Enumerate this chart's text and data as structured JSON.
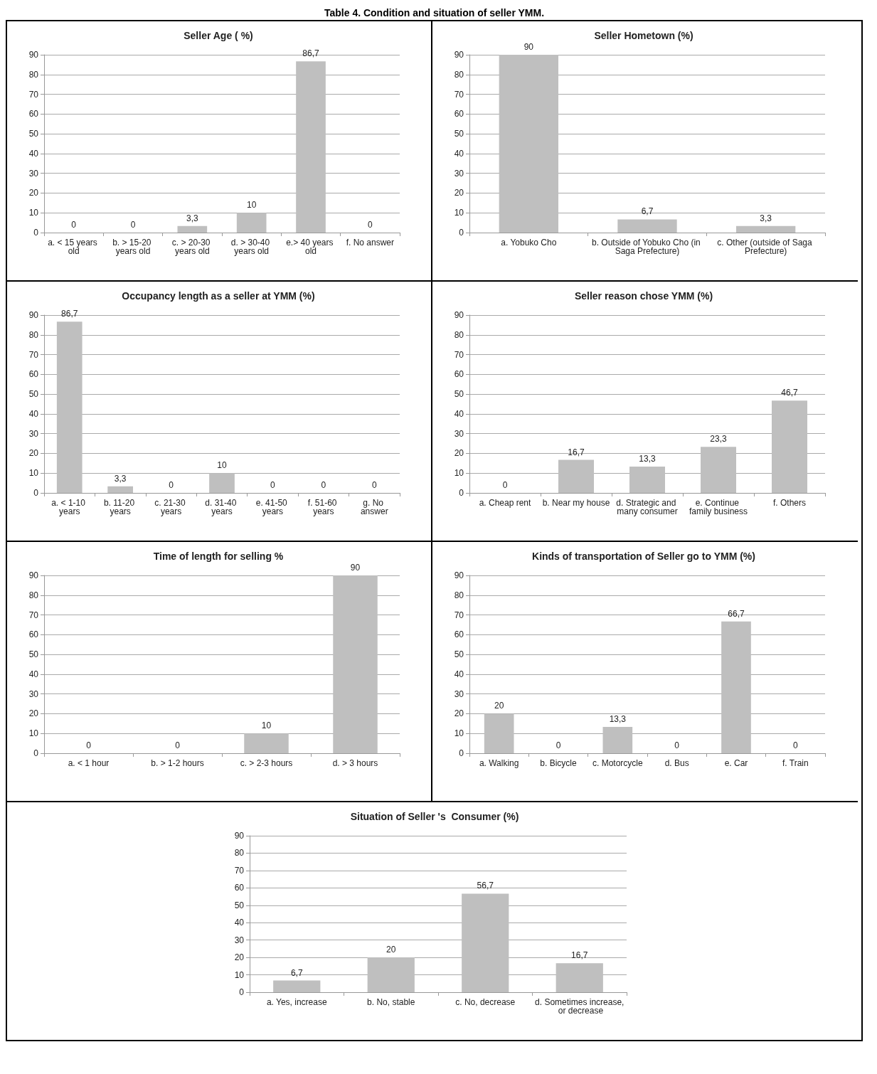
{
  "chart_data": [
    {
      "type": "bar",
      "title": "Seller Age ( %)",
      "annotations": [
        "Table 4. Condition and situation of seller YMM."
      ],
      "categories": [
        "a. < 15 years old",
        "b. > 15-20 years old",
        "c. > 20-30 years old",
        "d. > 30-40 years old",
        "e.> 40 years old",
        "f. No answer"
      ],
      "values": [
        0,
        0,
        3.3,
        10,
        86.7,
        0
      ],
      "value_labels": [
        "0",
        "0",
        "3,3",
        "10",
        "86,7",
        "0"
      ],
      "color": "#bfbfbf",
      "ylim": [
        0,
        90
      ],
      "yticks": [
        0,
        10,
        20,
        30,
        40,
        50,
        60,
        70,
        80,
        90
      ],
      "grid": "y"
    },
    {
      "type": "bar",
      "title": "Seller Hometown (%)",
      "categories": [
        "a. Yobuko Cho",
        "b. Outside of Yobuko Cho (in Saga Prefecture)",
        "c. Other (outside of Saga Prefecture)"
      ],
      "values": [
        90,
        6.7,
        3.3
      ],
      "value_labels": [
        "90",
        "6,7",
        "3,3"
      ],
      "color": "#bfbfbf",
      "ylim": [
        0,
        90
      ],
      "yticks": [
        0,
        10,
        20,
        30,
        40,
        50,
        60,
        70,
        80,
        90
      ],
      "grid": "y"
    },
    {
      "type": "bar",
      "title": "Occupancy length as a seller at YMM (%)",
      "categories": [
        "a. < 1-10 years",
        "b. 11-20 years",
        "c. 21-30 years",
        "d. 31-40 years",
        "e. 41-50 years",
        "f. 51-60 years",
        "g. No answer"
      ],
      "values": [
        86.7,
        3.3,
        0,
        10,
        0,
        0,
        0
      ],
      "value_labels": [
        "86,7",
        "3,3",
        "0",
        "10",
        "0",
        "0",
        "0"
      ],
      "color": "#bfbfbf",
      "ylim": [
        0,
        90
      ],
      "yticks": [
        0,
        10,
        20,
        30,
        40,
        50,
        60,
        70,
        80,
        90
      ],
      "grid": "y"
    },
    {
      "type": "bar",
      "title": "Seller reason chose YMM (%)",
      "categories": [
        "a. Cheap rent",
        "b. Near my house",
        "d. Strategic and many consumer",
        "e. Continue family business",
        "f. Others"
      ],
      "values": [
        0,
        16.7,
        13.3,
        23.3,
        46.7
      ],
      "value_labels": [
        "0",
        "16,7",
        "13,3",
        "23,3",
        "46,7"
      ],
      "color": "#bfbfbf",
      "ylim": [
        0,
        90
      ],
      "yticks": [
        0,
        10,
        20,
        30,
        40,
        50,
        60,
        70,
        80,
        90
      ],
      "grid": "y"
    },
    {
      "type": "bar",
      "title": "Time of length for selling %",
      "categories": [
        "a. < 1 hour",
        "b. > 1-2 hours",
        "c. > 2-3 hours",
        "d. > 3 hours"
      ],
      "values": [
        0,
        0,
        10,
        90
      ],
      "value_labels": [
        "0",
        "0",
        "10",
        "90"
      ],
      "color": "#bfbfbf",
      "ylim": [
        0,
        90
      ],
      "yticks": [
        0,
        10,
        20,
        30,
        40,
        50,
        60,
        70,
        80,
        90
      ],
      "grid": "y"
    },
    {
      "type": "bar",
      "title": "Kinds of transportation of Seller go to YMM (%)",
      "categories": [
        "a. Walking",
        "b. Bicycle",
        "c. Motorcycle",
        "d. Bus",
        "e. Car",
        "f. Train"
      ],
      "values": [
        20,
        0,
        13.3,
        0,
        66.7,
        0
      ],
      "value_labels": [
        "20",
        "0",
        "13,3",
        "0",
        "66,7",
        "0"
      ],
      "color": "#bfbfbf",
      "ylim": [
        0,
        90
      ],
      "yticks": [
        0,
        10,
        20,
        30,
        40,
        50,
        60,
        70,
        80,
        90
      ],
      "grid": "y"
    },
    {
      "type": "bar",
      "title": "Situation of Seller 's  Consumer (%)",
      "categories": [
        "a. Yes, increase",
        "b. No, stable",
        "c. No, decrease",
        "d. Sometimes increase, or decrease"
      ],
      "values": [
        6.7,
        20,
        56.7,
        16.7
      ],
      "value_labels": [
        "6,7",
        "20",
        "56,7",
        "16,7"
      ],
      "color": "#bfbfbf",
      "ylim": [
        0,
        90
      ],
      "yticks": [
        0,
        10,
        20,
        30,
        40,
        50,
        60,
        70,
        80,
        90
      ],
      "grid": "y"
    }
  ]
}
